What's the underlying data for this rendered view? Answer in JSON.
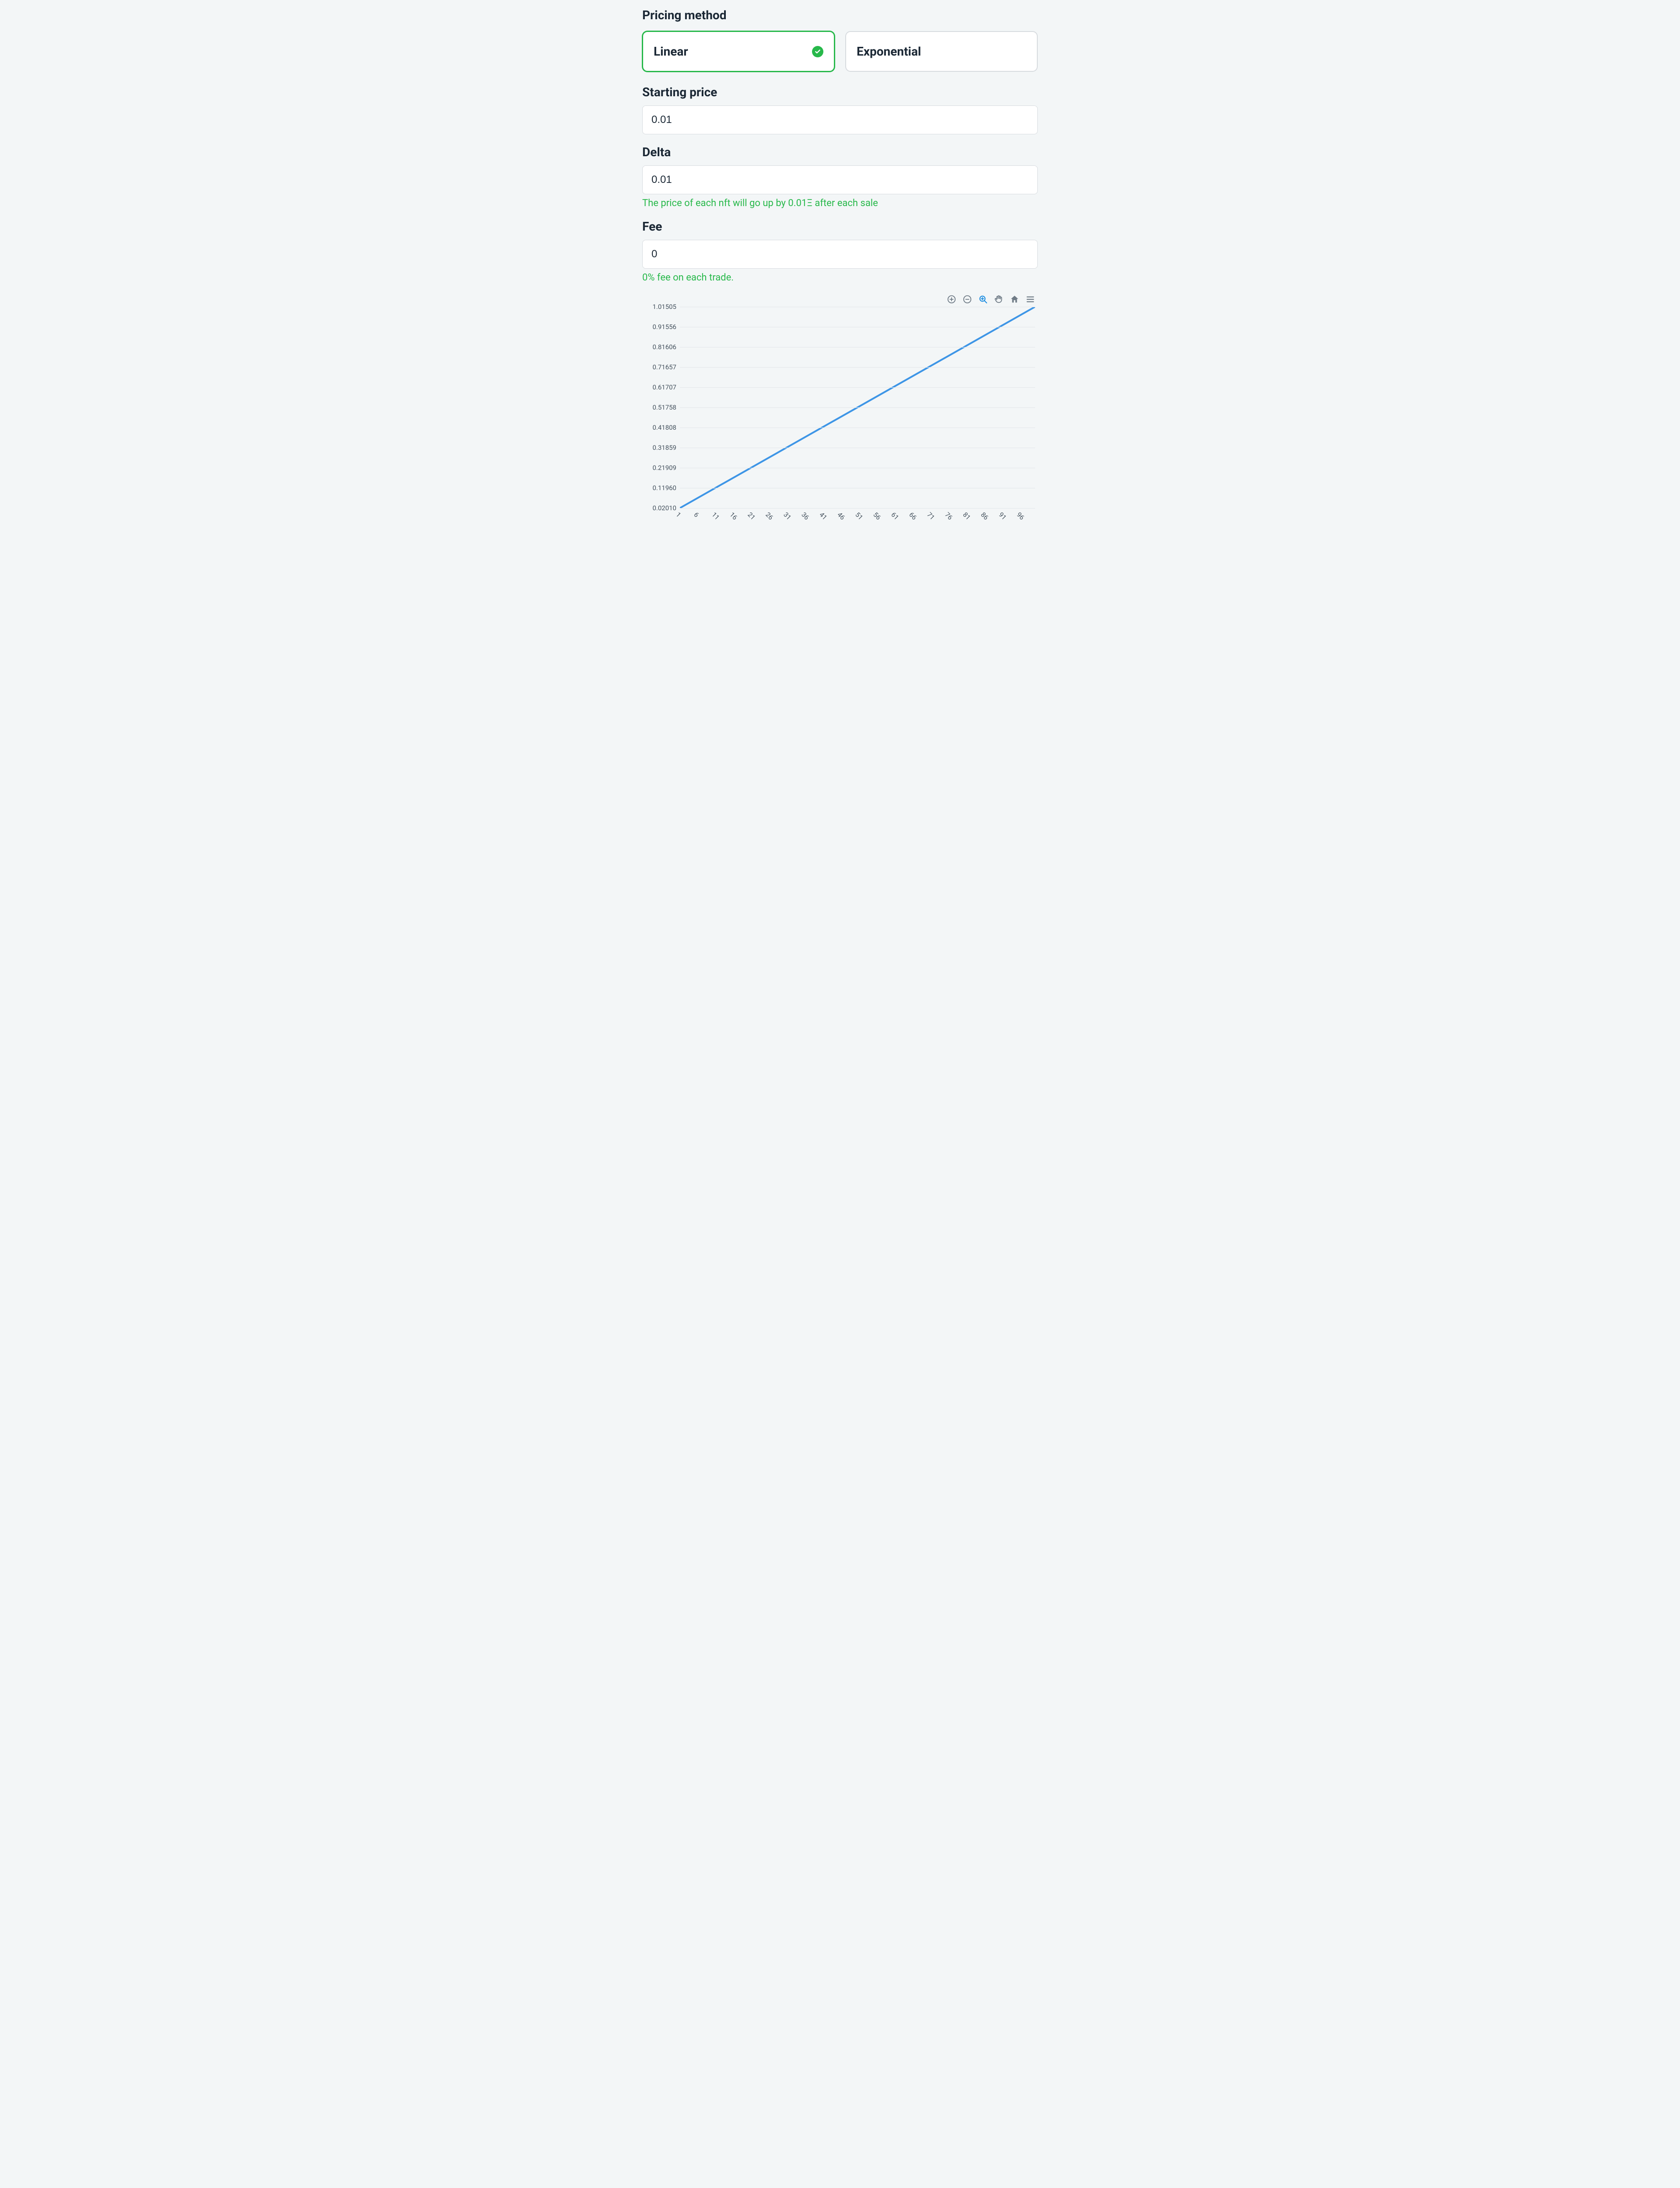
{
  "labels": {
    "pricing_method": "Pricing method",
    "starting_price": "Starting price",
    "delta": "Delta",
    "fee": "Fee"
  },
  "methods": {
    "linear": "Linear",
    "exponential": "Exponential",
    "selected": "linear"
  },
  "inputs": {
    "starting_price": "0.01",
    "delta": "0.01",
    "fee": "0"
  },
  "hints": {
    "delta": "The price of each nft will go up by 0.01Ξ after each sale",
    "fee": "0% fee on each trade."
  },
  "colors": {
    "accent": "#27b84a",
    "line": "#3d95e6",
    "grid": "#e2e6e9",
    "text": "#1a2734",
    "muted": "#6f7b86",
    "toolbar_active": "#1a8ce0",
    "bg": "#f3f6f7",
    "card_bg": "#ffffff",
    "border": "#d7dbdf"
  },
  "chart": {
    "type": "line",
    "line_color": "#3d95e6",
    "line_width": 4,
    "grid_color": "#e2e6e9",
    "background_color": "#f3f6f7",
    "x_start": 1,
    "x_end": 100,
    "x_tick_step": 5,
    "x_ticks": [
      1,
      6,
      11,
      16,
      21,
      26,
      31,
      36,
      41,
      46,
      51,
      56,
      61,
      66,
      71,
      76,
      81,
      86,
      91,
      96
    ],
    "x_label_rotation_deg": 45,
    "y_ticks": [
      0.0201,
      0.1196,
      0.21909,
      0.31859,
      0.41808,
      0.51758,
      0.61707,
      0.71657,
      0.81606,
      0.91556,
      1.01505
    ],
    "y_tick_labels": [
      "0.02010",
      "0.11960",
      "0.21909",
      "0.31859",
      "0.41808",
      "0.51758",
      "0.61707",
      "0.71657",
      "0.81606",
      "0.91556",
      "1.01505"
    ],
    "y_min": 0.0201,
    "y_max": 1.01505,
    "y_label_fontsize": 15,
    "x_label_fontsize": 15,
    "series": {
      "x": [
        1,
        100
      ],
      "y": [
        0.0201,
        1.01505
      ]
    }
  },
  "toolbar": {
    "items": [
      "zoom-in-circle",
      "zoom-out-circle",
      "zoom-selection",
      "pan",
      "home",
      "menu"
    ],
    "active": "zoom-selection"
  }
}
